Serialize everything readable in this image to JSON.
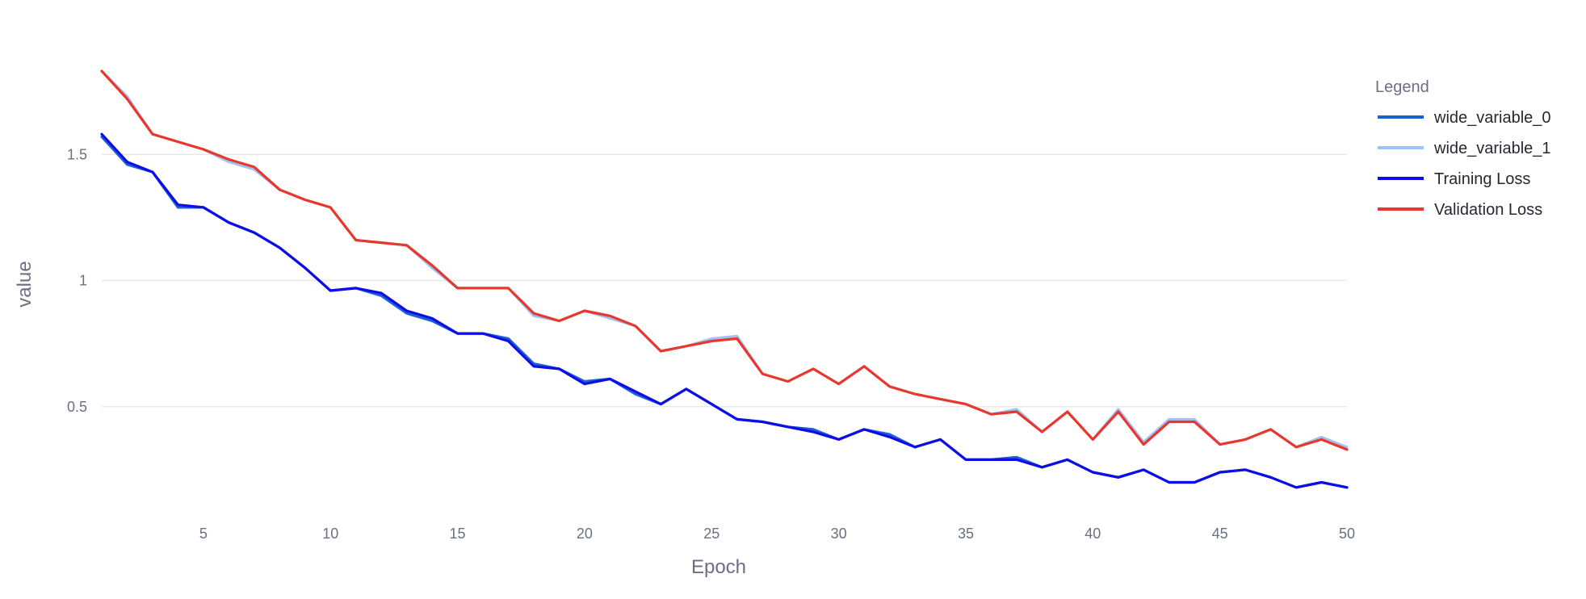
{
  "chart_data": {
    "type": "line",
    "xlabel": "Epoch",
    "ylabel": "value",
    "x_ticks": [
      5,
      10,
      15,
      20,
      25,
      30,
      35,
      40,
      45,
      50
    ],
    "y_ticks": [
      0.5,
      1,
      1.5
    ],
    "y_tick_labels": [
      "0.5",
      "1",
      "1.5"
    ],
    "xlim": [
      1,
      50
    ],
    "ylim": [
      0.08,
      1.92
    ],
    "grid": "horizontal",
    "legend_title": "Legend",
    "legend_position": "right",
    "x": [
      1,
      2,
      3,
      4,
      5,
      6,
      7,
      8,
      9,
      10,
      11,
      12,
      13,
      14,
      15,
      16,
      17,
      18,
      19,
      20,
      21,
      22,
      23,
      24,
      25,
      26,
      27,
      28,
      29,
      30,
      31,
      32,
      33,
      34,
      35,
      36,
      37,
      38,
      39,
      40,
      41,
      42,
      43,
      44,
      45,
      46,
      47,
      48,
      49,
      50
    ],
    "series": [
      {
        "name": "wide_variable_0",
        "color": "#1f5fd6",
        "values": [
          1.57,
          1.46,
          1.43,
          1.29,
          1.29,
          1.23,
          1.19,
          1.13,
          1.05,
          0.96,
          0.97,
          0.94,
          0.87,
          0.84,
          0.79,
          0.79,
          0.77,
          0.67,
          0.65,
          0.6,
          0.61,
          0.55,
          0.51,
          0.57,
          0.51,
          0.45,
          0.44,
          0.42,
          0.41,
          0.37,
          0.41,
          0.39,
          0.34,
          0.37,
          0.29,
          0.29,
          0.3,
          0.26,
          0.29,
          0.24,
          0.22,
          0.25,
          0.2,
          0.2,
          0.24,
          0.25,
          0.22,
          0.18,
          0.2,
          0.18
        ]
      },
      {
        "name": "wide_variable_1",
        "color": "#9fc3f5",
        "values": [
          1.83,
          1.73,
          1.58,
          1.55,
          1.52,
          1.47,
          1.44,
          1.36,
          1.32,
          1.29,
          1.16,
          1.15,
          1.14,
          1.05,
          0.97,
          0.97,
          0.97,
          0.86,
          0.84,
          0.88,
          0.85,
          0.82,
          0.72,
          0.74,
          0.77,
          0.78,
          0.63,
          0.6,
          0.65,
          0.59,
          0.66,
          0.58,
          0.55,
          0.53,
          0.51,
          0.47,
          0.49,
          0.4,
          0.48,
          0.37,
          0.49,
          0.36,
          0.45,
          0.45,
          0.35,
          0.37,
          0.41,
          0.34,
          0.38,
          0.34
        ]
      },
      {
        "name": "Training Loss",
        "color": "#0d0de6",
        "values": [
          1.58,
          1.47,
          1.43,
          1.3,
          1.29,
          1.23,
          1.19,
          1.13,
          1.05,
          0.96,
          0.97,
          0.95,
          0.88,
          0.85,
          0.79,
          0.79,
          0.76,
          0.66,
          0.65,
          0.59,
          0.61,
          0.56,
          0.51,
          0.57,
          0.51,
          0.45,
          0.44,
          0.42,
          0.4,
          0.37,
          0.41,
          0.38,
          0.34,
          0.37,
          0.29,
          0.29,
          0.29,
          0.26,
          0.29,
          0.24,
          0.22,
          0.25,
          0.2,
          0.2,
          0.24,
          0.25,
          0.22,
          0.18,
          0.2,
          0.18
        ]
      },
      {
        "name": "Validation Loss",
        "color": "#e8372c",
        "values": [
          1.83,
          1.72,
          1.58,
          1.55,
          1.52,
          1.48,
          1.45,
          1.36,
          1.32,
          1.29,
          1.16,
          1.15,
          1.14,
          1.06,
          0.97,
          0.97,
          0.97,
          0.87,
          0.84,
          0.88,
          0.86,
          0.82,
          0.72,
          0.74,
          0.76,
          0.77,
          0.63,
          0.6,
          0.65,
          0.59,
          0.66,
          0.58,
          0.55,
          0.53,
          0.51,
          0.47,
          0.48,
          0.4,
          0.48,
          0.37,
          0.48,
          0.35,
          0.44,
          0.44,
          0.35,
          0.37,
          0.41,
          0.34,
          0.37,
          0.33
        ]
      }
    ]
  }
}
